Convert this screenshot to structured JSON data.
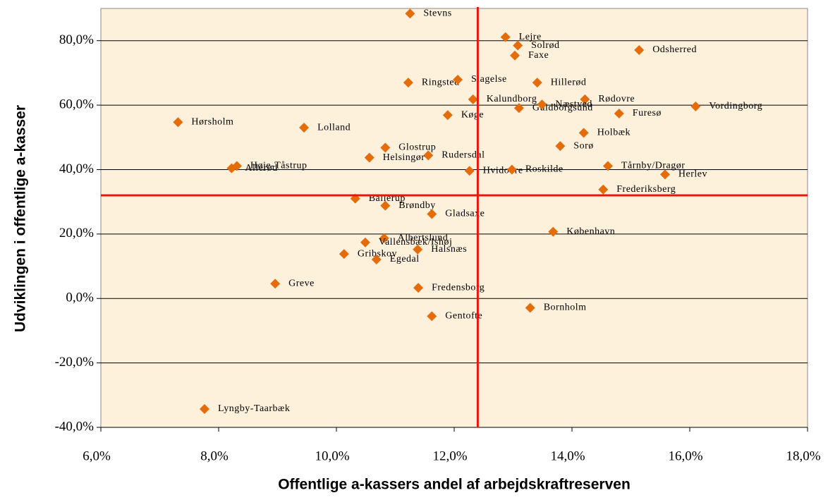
{
  "chart_data": {
    "type": "scatter",
    "xlabel": "Offentlige a-kassers andel af arbejdskraftreserven",
    "ylabel": "Udviklingen i offentlige a-kasser",
    "color": "#e46c0a",
    "labels": [
      "Stevns",
      "Lejre",
      "Solrød",
      "Faxe",
      "Odsherred",
      "Ringsted",
      "Slagelse",
      "Hillerød",
      "Kalundborg",
      "Rødovre",
      "Guldborgsund",
      "Næstved",
      "Furesø",
      "Vordingborg",
      "Køge",
      "Hørsholm",
      "Lolland",
      "Holbæk",
      "Sorø",
      "Glostrup",
      "Rudersdal",
      "Helsingør",
      "Tårnby/Dragør",
      "Høje-Tåstrup",
      "Allerød",
      "Hvidovre",
      "Roskilde",
      "Herlev",
      "Frederiksberg",
      "Ballerup",
      "Brøndby",
      "Gladsaxe",
      "København",
      "Albertslund",
      "Vallensbæk/Ishøj",
      "Halsnæs",
      "Gribskov",
      "Egedal",
      "Greve",
      "Fredensborg",
      "Bornholm",
      "Gentofte",
      "Lyngby-Taarbæk"
    ],
    "x": [
      11.25,
      12.87,
      13.08,
      13.03,
      15.14,
      11.22,
      12.06,
      13.41,
      12.32,
      14.22,
      13.1,
      13.49,
      14.8,
      16.1,
      11.89,
      7.31,
      9.45,
      14.2,
      13.8,
      10.83,
      11.56,
      10.56,
      14.61,
      8.31,
      8.22,
      12.26,
      12.98,
      15.58,
      14.53,
      10.32,
      10.83,
      11.62,
      13.68,
      10.81,
      10.49,
      11.38,
      10.13,
      10.68,
      8.96,
      11.39,
      13.29,
      11.62,
      7.76
    ],
    "values": [
      88.4,
      81.1,
      78.5,
      75.4,
      77.1,
      67.0,
      67.9,
      67.0,
      61.8,
      61.8,
      59.1,
      60.2,
      57.4,
      59.6,
      56.9,
      54.7,
      53.0,
      51.4,
      47.3,
      46.8,
      44.4,
      43.7,
      41.1,
      41.1,
      40.4,
      39.6,
      40.0,
      38.5,
      33.8,
      31.0,
      28.8,
      26.2,
      20.7,
      18.7,
      17.4,
      15.2,
      13.8,
      12.1,
      4.6,
      3.3,
      -2.9,
      -5.5,
      -34.3
    ],
    "xlim": [
      6,
      18
    ],
    "xticks": [
      {
        "value": 6,
        "label": "6,0%"
      },
      {
        "value": 8,
        "label": "8,0%"
      },
      {
        "value": 10,
        "label": "10,0%"
      },
      {
        "value": 12,
        "label": "12,0%"
      },
      {
        "value": 14,
        "label": "14,0%"
      },
      {
        "value": 16,
        "label": "16,0%"
      },
      {
        "value": 18,
        "label": "18,0%"
      }
    ],
    "ylim": [
      -40,
      90
    ],
    "yticks": [
      {
        "value": -40,
        "label": "-40,0%"
      },
      {
        "value": -20,
        "label": "-20,0%"
      },
      {
        "value": 0,
        "label": "0,0%"
      },
      {
        "value": 20,
        "label": "20,0%"
      },
      {
        "value": 40,
        "label": "40,0%"
      },
      {
        "value": 60,
        "label": "60,0%"
      },
      {
        "value": 80,
        "label": "80,0%"
      }
    ],
    "grid": true,
    "reference_x": 12.4,
    "reference_y": 32,
    "reference_color": "#e8160c"
  }
}
